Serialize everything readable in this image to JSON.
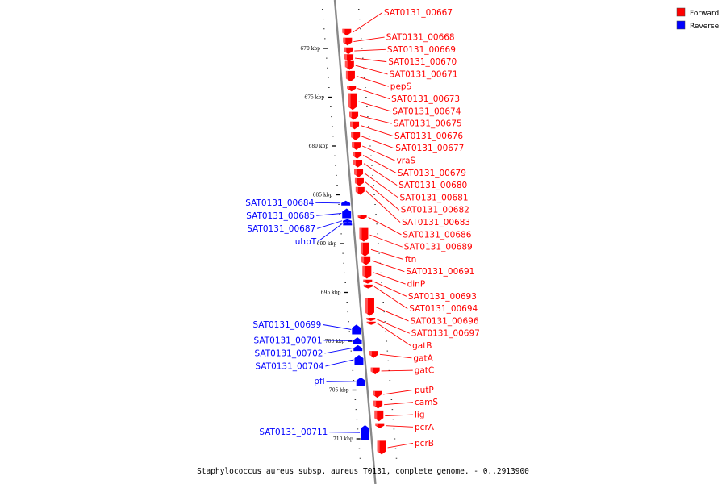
{
  "caption": "Staphylococcus aureus subsp. aureus T0131, complete genome. - 0..2913900",
  "legend": [
    {
      "label": "Forward",
      "color": "#ff0000"
    },
    {
      "label": "Reverse",
      "color": "#0000ff"
    }
  ],
  "colors": {
    "forward": "#ff0000",
    "reverse": "#0000ff",
    "backbone": "#888888"
  },
  "ticks": [
    {
      "kbp": 670,
      "label": "670 kbp"
    },
    {
      "kbp": 675,
      "label": "675 kbp"
    },
    {
      "kbp": 680,
      "label": "680 kbp"
    },
    {
      "kbp": 685,
      "label": "685 kbp"
    },
    {
      "kbp": 690,
      "label": "690 kbp"
    },
    {
      "kbp": 695,
      "label": "695 kbp"
    },
    {
      "kbp": 700,
      "label": "700 kbp"
    },
    {
      "kbp": 705,
      "label": "705 kbp"
    },
    {
      "kbp": 710,
      "label": "710 kbp"
    }
  ],
  "forward_genes": [
    {
      "label": "SAT0131_00667",
      "kbp": 668.0,
      "len": 0.7
    },
    {
      "label": "SAT0131_00668",
      "kbp": 668.9,
      "len": 0.8
    },
    {
      "label": "SAT0131_00669",
      "kbp": 669.9,
      "len": 0.7
    },
    {
      "label": "SAT0131_00670",
      "kbp": 670.6,
      "len": 0.8
    },
    {
      "label": "SAT0131_00671",
      "kbp": 671.3,
      "len": 0.9
    },
    {
      "label": "pepS",
      "kbp": 672.3,
      "len": 1.1
    },
    {
      "label": "SAT0131_00673",
      "kbp": 673.8,
      "len": 0.6
    },
    {
      "label": "SAT0131_00674",
      "kbp": 674.6,
      "len": 1.7
    },
    {
      "label": "SAT0131_00675",
      "kbp": 676.5,
      "len": 0.8
    },
    {
      "label": "SAT0131_00676",
      "kbp": 677.5,
      "len": 0.8
    },
    {
      "label": "SAT0131_00677",
      "kbp": 678.6,
      "len": 0.8
    },
    {
      "label": "vraS",
      "kbp": 679.6,
      "len": 0.8
    },
    {
      "label": "SAT0131_00679",
      "kbp": 680.6,
      "len": 0.7
    },
    {
      "label": "SAT0131_00680",
      "kbp": 681.4,
      "len": 0.8
    },
    {
      "label": "SAT0131_00681",
      "kbp": 682.4,
      "len": 0.8
    },
    {
      "label": "SAT0131_00682",
      "kbp": 683.3,
      "len": 0.8
    },
    {
      "label": "SAT0131_00683",
      "kbp": 684.2,
      "len": 0.8
    },
    {
      "label": "SAT0131_00686",
      "kbp": 687.1,
      "len": 0.4
    },
    {
      "label": "SAT0131_00689",
      "kbp": 688.4,
      "len": 1.4
    },
    {
      "label": "ftn",
      "kbp": 689.9,
      "len": 1.4
    },
    {
      "label": "SAT0131_00691",
      "kbp": 691.3,
      "len": 0.9
    },
    {
      "label": "dinP",
      "kbp": 692.3,
      "len": 1.3
    },
    {
      "label": "SAT0131_00693",
      "kbp": 693.7,
      "len": 0.4
    },
    {
      "label": "SAT0131_00694",
      "kbp": 694.2,
      "len": 0.4
    },
    {
      "label": "SAT0131_00696",
      "kbp": 695.6,
      "len": 1.8
    },
    {
      "label": "SAT0131_00697",
      "kbp": 697.6,
      "len": 0.2
    },
    {
      "label": "gatB",
      "kbp": 698.0,
      "len": 0.2
    },
    {
      "label": "gatA",
      "kbp": 701.0,
      "len": 0.7
    },
    {
      "label": "gatC",
      "kbp": 702.7,
      "len": 0.7
    },
    {
      "label": "putP",
      "kbp": 705.1,
      "len": 0.7
    },
    {
      "label": "camS",
      "kbp": 706.1,
      "len": 0.8
    },
    {
      "label": "lig",
      "kbp": 707.1,
      "len": 1.1
    },
    {
      "label": "pcrA",
      "kbp": 708.4,
      "len": 0.5
    },
    {
      "label": "pcrB",
      "kbp": 710.2,
      "len": 1.4
    }
  ],
  "reverse_genes": [
    {
      "label": "SAT0131_00684",
      "kbp": 685.6,
      "len": 0.5
    },
    {
      "label": "SAT0131_00685",
      "kbp": 686.4,
      "len": 1.0
    },
    {
      "label": "SAT0131_00687",
      "kbp": 687.5,
      "len": 0.3
    },
    {
      "label": "uhpT",
      "kbp": 687.8,
      "len": 0.3
    },
    {
      "label": "SAT0131_00699",
      "kbp": 698.3,
      "len": 1.0
    },
    {
      "label": "SAT0131_00701",
      "kbp": 699.6,
      "len": 0.7
    },
    {
      "label": "SAT0131_00702",
      "kbp": 700.4,
      "len": 0.6
    },
    {
      "label": "SAT0131_00704",
      "kbp": 701.4,
      "len": 1.0
    },
    {
      "label": "pfl",
      "kbp": 703.7,
      "len": 0.9
    },
    {
      "label": "SAT0131_00711",
      "kbp": 708.6,
      "len": 1.5
    }
  ]
}
